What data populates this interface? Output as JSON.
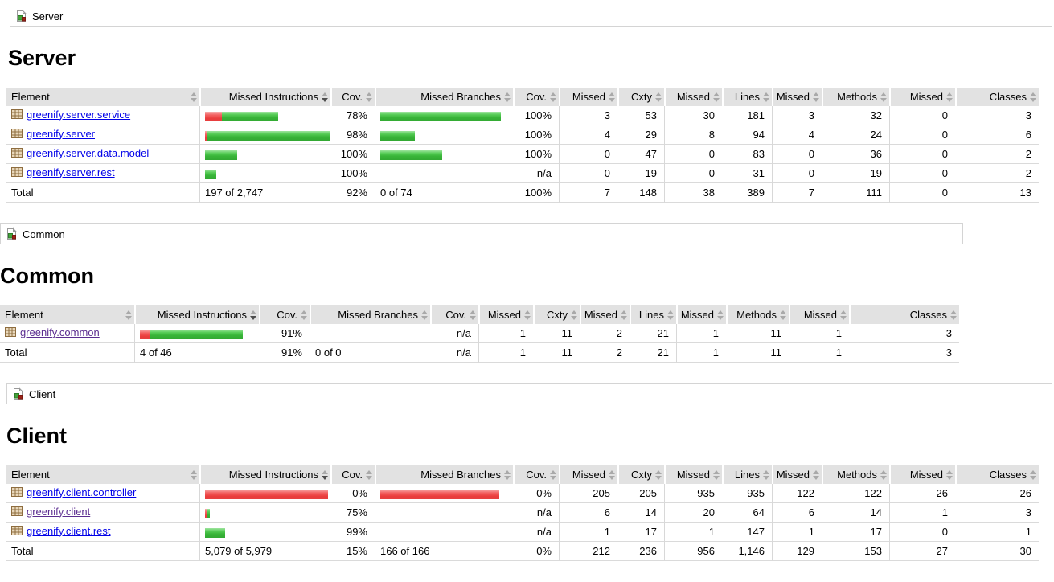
{
  "colors": {
    "link": "#0000e8",
    "link_visited": "#5b2d90",
    "bar_green": "#38b438",
    "bar_red": "#ea3c3c",
    "header_bg": "#e2e2e2"
  },
  "icons": {
    "breadcrumb": "group-icon",
    "package": "package-icon",
    "sort": "sort-arrows-icon"
  },
  "sections": [
    {
      "breadcrumb": "Server",
      "title": "Server",
      "columns": [
        "Element",
        "Missed Instructions",
        "Cov.",
        "Missed Branches",
        "Cov.",
        "Missed",
        "Cxty",
        "Missed",
        "Lines",
        "Missed",
        "Methods",
        "Missed",
        "Classes"
      ],
      "sorted_column_index": 1,
      "rows": [
        {
          "name": "greenify.server.service",
          "visited": false,
          "instr_bar": {
            "red": 21,
            "green": 70
          },
          "instr_cov": "78%",
          "branch_bar": {
            "red": 0,
            "green": 150
          },
          "branch_cov": "100%",
          "cells": [
            "3",
            "53",
            "30",
            "181",
            "3",
            "32",
            "0",
            "3"
          ]
        },
        {
          "name": "greenify.server",
          "visited": false,
          "instr_bar": {
            "red": 2,
            "green": 158
          },
          "instr_cov": "98%",
          "branch_bar": {
            "red": 0,
            "green": 43
          },
          "branch_cov": "100%",
          "cells": [
            "4",
            "29",
            "8",
            "94",
            "4",
            "24",
            "0",
            "6"
          ]
        },
        {
          "name": "greenify.server.data.model",
          "visited": false,
          "instr_bar": {
            "red": 0,
            "green": 40
          },
          "instr_cov": "100%",
          "branch_bar": {
            "red": 0,
            "green": 77
          },
          "branch_cov": "100%",
          "cells": [
            "0",
            "47",
            "0",
            "83",
            "0",
            "36",
            "0",
            "2"
          ]
        },
        {
          "name": "greenify.server.rest",
          "visited": false,
          "instr_bar": {
            "red": 0,
            "green": 14
          },
          "instr_cov": "100%",
          "branch_bar": null,
          "branch_cov": "n/a",
          "cells": [
            "0",
            "19",
            "0",
            "31",
            "0",
            "19",
            "0",
            "2"
          ]
        }
      ],
      "total": {
        "label": "Total",
        "instr": "197 of 2,747",
        "instr_cov": "92%",
        "branch": "0 of 74",
        "branch_cov": "100%",
        "cells": [
          "7",
          "148",
          "38",
          "389",
          "7",
          "111",
          "0",
          "13"
        ]
      }
    },
    {
      "breadcrumb": "Common",
      "title": "Common",
      "columns": [
        "Element",
        "Missed Instructions",
        "Cov.",
        "Missed Branches",
        "Cov.",
        "Missed",
        "Cxty",
        "Missed",
        "Lines",
        "Missed",
        "Methods",
        "Missed",
        "Classes"
      ],
      "sorted_column_index": 1,
      "rows": [
        {
          "name": "greenify.common",
          "visited": true,
          "instr_bar": {
            "red": 13,
            "green": 115
          },
          "instr_cov": "91%",
          "branch_bar": null,
          "branch_cov": "n/a",
          "cells": [
            "1",
            "11",
            "2",
            "21",
            "1",
            "11",
            "1",
            "3"
          ]
        }
      ],
      "total": {
        "label": "Total",
        "instr": "4 of 46",
        "instr_cov": "91%",
        "branch": "0 of 0",
        "branch_cov": "n/a",
        "cells": [
          "1",
          "11",
          "2",
          "21",
          "1",
          "11",
          "1",
          "3"
        ]
      }
    },
    {
      "breadcrumb": "Client",
      "title": "Client",
      "columns": [
        "Element",
        "Missed Instructions",
        "Cov.",
        "Missed Branches",
        "Cov.",
        "Missed",
        "Cxty",
        "Missed",
        "Lines",
        "Missed",
        "Methods",
        "Missed",
        "Classes"
      ],
      "sorted_column_index": 1,
      "rows": [
        {
          "name": "greenify.client.controller",
          "visited": false,
          "instr_bar": {
            "red": 153,
            "green": 0
          },
          "instr_cov": "0%",
          "branch_bar": {
            "red": 148,
            "green": 0
          },
          "branch_cov": "0%",
          "cells": [
            "205",
            "205",
            "935",
            "935",
            "122",
            "122",
            "26",
            "26"
          ]
        },
        {
          "name": "greenify.client",
          "visited": true,
          "instr_bar": {
            "red": 2,
            "green": 4
          },
          "instr_cov": "75%",
          "branch_bar": null,
          "branch_cov": "n/a",
          "cells": [
            "6",
            "14",
            "20",
            "64",
            "6",
            "14",
            "1",
            "3"
          ]
        },
        {
          "name": "greenify.client.rest",
          "visited": false,
          "instr_bar": {
            "red": 0,
            "green": 25
          },
          "instr_cov": "99%",
          "branch_bar": null,
          "branch_cov": "n/a",
          "cells": [
            "1",
            "17",
            "1",
            "147",
            "1",
            "17",
            "0",
            "1"
          ]
        }
      ],
      "total": {
        "label": "Total",
        "instr": "5,079 of 5,979",
        "instr_cov": "15%",
        "branch": "166 of 166",
        "branch_cov": "0%",
        "cells": [
          "212",
          "236",
          "956",
          "1,146",
          "129",
          "153",
          "27",
          "30"
        ]
      }
    }
  ]
}
